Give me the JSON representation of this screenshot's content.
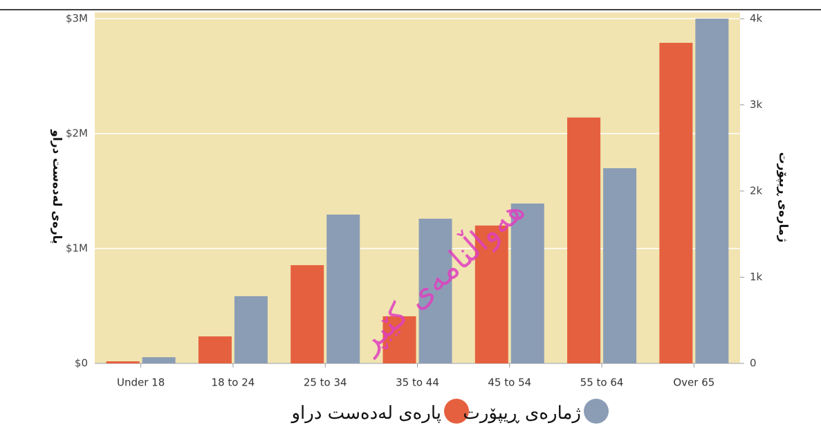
{
  "chart_data": {
    "type": "bar",
    "categories": [
      "Under 18",
      "18 to 24",
      "25 to 34",
      "35 to 44",
      "45 to 54",
      "55 to 64",
      "Over 65"
    ],
    "series": [
      {
        "name": "پارەی لەدەست دراو",
        "color": "#e5603f",
        "values": [
          18000,
          235000,
          855000,
          410000,
          1200000,
          2140000,
          2790000
        ]
      },
      {
        "name": "ژمارەی ڕیپۆرت",
        "color": "#8b9db5",
        "axis": "y2",
        "values": [
          72,
          780,
          1727,
          1679,
          1855,
          2265,
          4000
        ]
      }
    ],
    "ylabel": "پارەی لەدەست دراو",
    "y2label": "ژمارەی ڕیپۆرت",
    "ylim": [
      0,
      3000000
    ],
    "yticks": [
      {
        "value": 0,
        "label": "$0"
      },
      {
        "value": 1000000,
        "label": "$1M"
      },
      {
        "value": 2000000,
        "label": "$2M"
      },
      {
        "value": 3000000,
        "label": "$3M"
      }
    ],
    "y2lim": [
      0,
      4000
    ],
    "y2ticks": [
      0,
      {
        "value": 1000,
        "label": "1k"
      },
      {
        "value": 2000,
        "label": "2k"
      },
      {
        "value": 3000,
        "label": "3k"
      },
      {
        "value": 4000,
        "label": "4k"
      }
    ],
    "grid": true,
    "legend": "bottom",
    "annotations": [
      "هەواڵنامەی کێبڕ"
    ]
  }
}
